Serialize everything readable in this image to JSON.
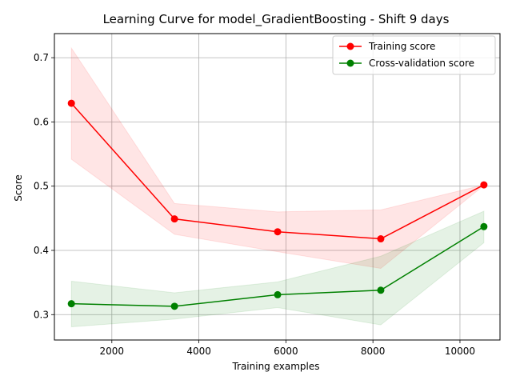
{
  "chart_data": {
    "type": "line",
    "title": "Learning Curve for model_GradientBoosting - Shift 9 days",
    "xlabel": "Training examples",
    "ylabel": "Score",
    "xlim": [
      680,
      10920
    ],
    "ylim": [
      0.2605,
      0.7375
    ],
    "x_ticks": [
      2000,
      4000,
      6000,
      8000,
      10000
    ],
    "y_ticks": [
      0.3,
      0.4,
      0.5,
      0.6,
      0.7
    ],
    "grid": true,
    "legend_position": "top-right",
    "x": [
      1070,
      3440,
      5810,
      8180,
      10550
    ],
    "series": [
      {
        "name": "Training score",
        "color": "#ff0000",
        "band_color": "#ff0000",
        "values": [
          0.629,
          0.449,
          0.429,
          0.418,
          0.502
        ],
        "upper": [
          0.715,
          0.473,
          0.46,
          0.463,
          0.502
        ],
        "lower": [
          0.542,
          0.425,
          0.398,
          0.372,
          0.501
        ]
      },
      {
        "name": "Cross-validation score",
        "color": "#008000",
        "band_color": "#008000",
        "values": [
          0.317,
          0.313,
          0.331,
          0.338,
          0.437
        ],
        "upper": [
          0.352,
          0.334,
          0.351,
          0.391,
          0.461
        ],
        "lower": [
          0.281,
          0.293,
          0.311,
          0.284,
          0.412
        ]
      }
    ]
  }
}
